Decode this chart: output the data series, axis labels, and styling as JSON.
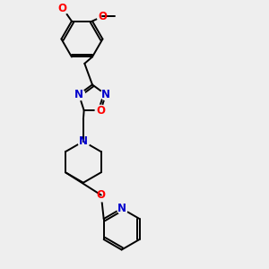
{
  "bg_color": "#eeeeee",
  "bond_color": "#000000",
  "N_color": "#0000cc",
  "O_color": "#ff0000",
  "line_width": 1.4,
  "font_size": 8.5,
  "figsize": [
    3.0,
    3.0
  ],
  "dpi": 100,
  "xlim": [
    0,
    10
  ],
  "ylim": [
    0,
    10
  ]
}
